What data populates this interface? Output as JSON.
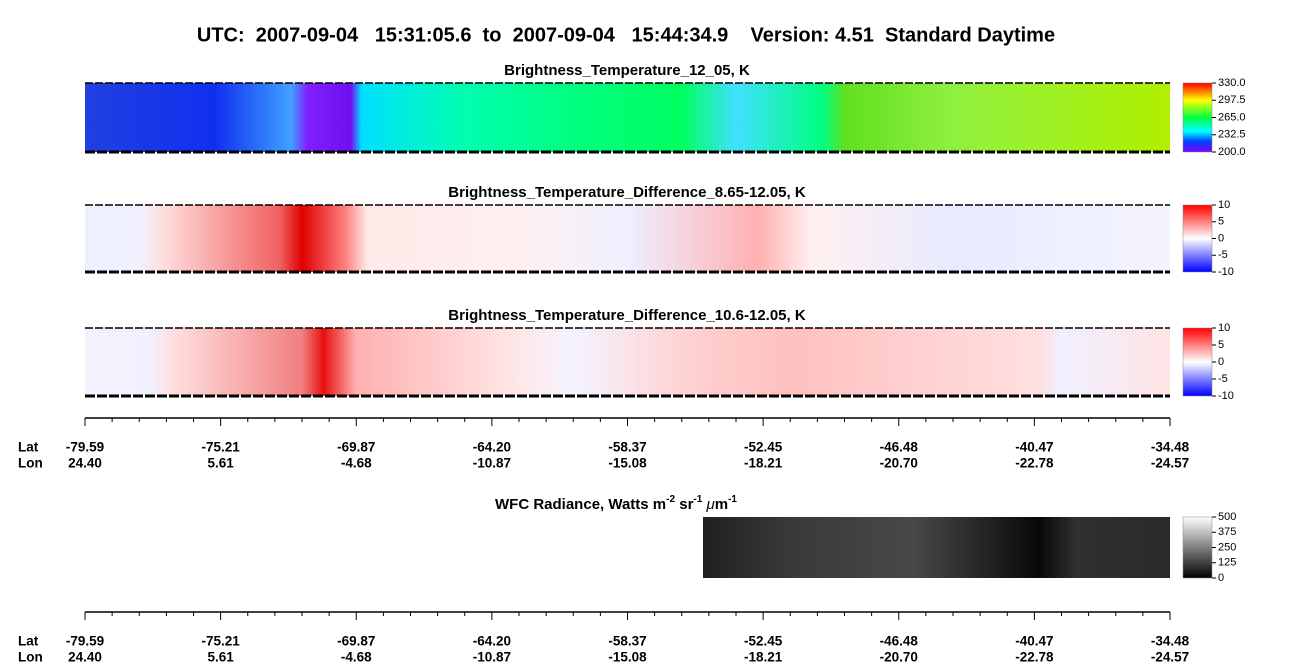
{
  "title": "UTC:  2007-09-04   15:31:05.6  to  2007-09-04   15:44:34.9    Version: 4.51  Standard Daytime",
  "panels": [
    {
      "title": "Brightness_Temperature_12_05, K",
      "colorbar_ticks": [
        {
          "value": 200,
          "label": "200.0"
        },
        {
          "value": 232.5,
          "label": "232.5"
        },
        {
          "value": 265,
          "label": "265.0"
        },
        {
          "value": 297.5,
          "label": "297.5"
        },
        {
          "value": 330,
          "label": "330.0"
        }
      ]
    },
    {
      "title": "Brightness_Temperature_Difference_8.65-12.05, K",
      "colorbar_ticks": [
        -10,
        -5,
        0,
        5,
        10
      ]
    },
    {
      "title": "Brightness_Temperature_Difference_10.6-12.05, K",
      "colorbar_ticks": [
        -10,
        -5,
        0,
        5,
        10
      ]
    }
  ],
  "wfc": {
    "title_parts": [
      "WFC Radiance, Watts m",
      "-2",
      " sr",
      "-1",
      " ",
      "μ",
      "m",
      "-1"
    ],
    "colorbar_ticks": [
      0,
      125,
      250,
      375,
      500
    ]
  },
  "axes": [
    {
      "lat_label": "Lat",
      "lon_label": "Lon",
      "lat": [
        "-79.59",
        "-75.21",
        "-69.87",
        "-64.20",
        "-58.37",
        "-52.45",
        "-46.48",
        "-40.47",
        "-34.48"
      ],
      "lon": [
        "24.40",
        "5.61",
        "-4.68",
        "-10.87",
        "-15.08",
        "-18.21",
        "-20.70",
        "-22.78",
        "-24.57"
      ]
    },
    {
      "lat_label": "Lat",
      "lon_label": "Lon",
      "lat": [
        "-79.59",
        "-75.21",
        "-69.87",
        "-64.20",
        "-58.37",
        "-52.45",
        "-46.48",
        "-40.47",
        "-34.48"
      ],
      "lon": [
        "24.40",
        "5.61",
        "-4.68",
        "-10.87",
        "-15.08",
        "-18.21",
        "-20.70",
        "-22.78",
        "-24.57"
      ]
    }
  ]
}
